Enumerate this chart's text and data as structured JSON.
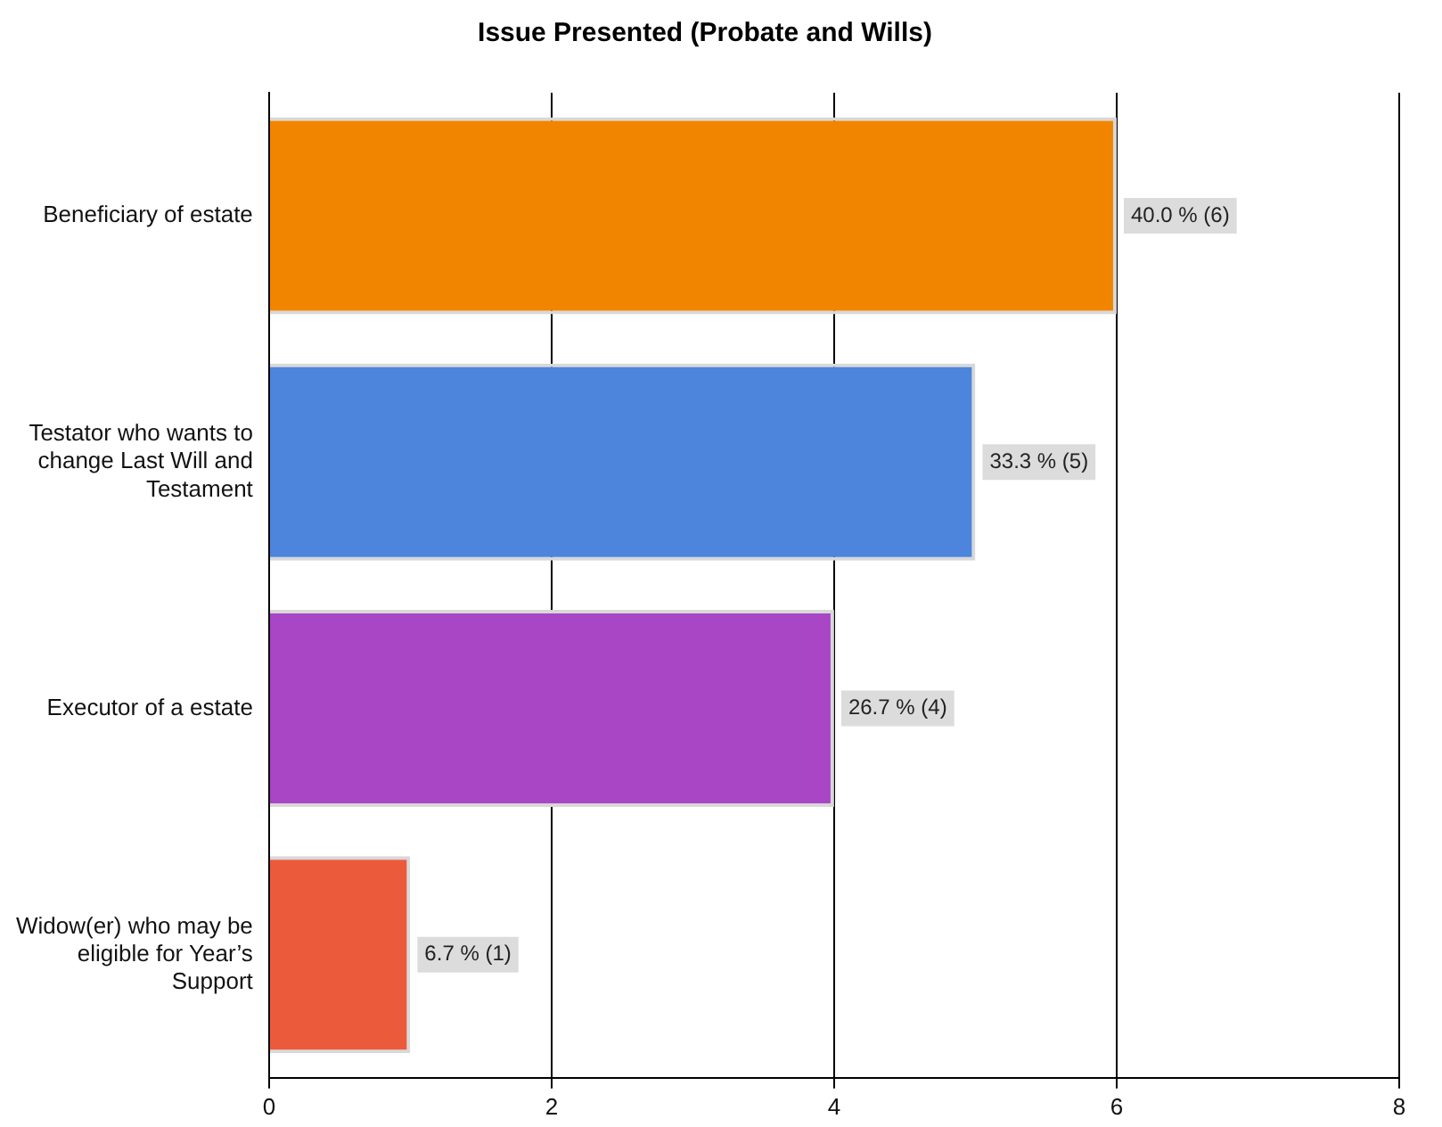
{
  "chart_data": {
    "type": "bar",
    "orientation": "horizontal",
    "title": "Issue Presented (Probate and Wills)",
    "categories": [
      "Beneficiary of estate",
      "Testator who wants to change Last Will and Testament",
      "Executor of a estate",
      "Widow(er) who may be eligible for Year’s Support"
    ],
    "values": [
      6,
      5,
      4,
      1
    ],
    "colors": [
      "#f28500",
      "#4d84dc",
      "#a846c6",
      "#ec5a3c"
    ],
    "value_labels": [
      "40.0 % (6)",
      "33.3 % (5)",
      "26.7 % (4)",
      "6.7 % (1)"
    ],
    "xlim": [
      0,
      8
    ],
    "xticks": [
      0,
      2,
      4,
      6,
      8
    ],
    "grid": "x",
    "legend": false
  }
}
